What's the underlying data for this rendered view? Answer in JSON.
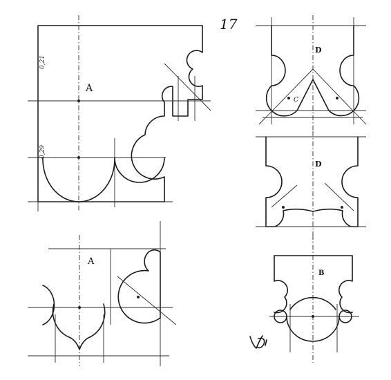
{
  "plate_number": "17",
  "figures": {
    "top_left": {
      "label": "A",
      "dim_upper": "0,21",
      "dim_lower": "0,29"
    },
    "bottom_left": {
      "label": "A"
    },
    "right_top": {
      "label": "D",
      "small_label": "C"
    },
    "right_middle": {
      "label": "D"
    },
    "right_bottom": {
      "label": "B"
    }
  },
  "signature_text": "VD"
}
